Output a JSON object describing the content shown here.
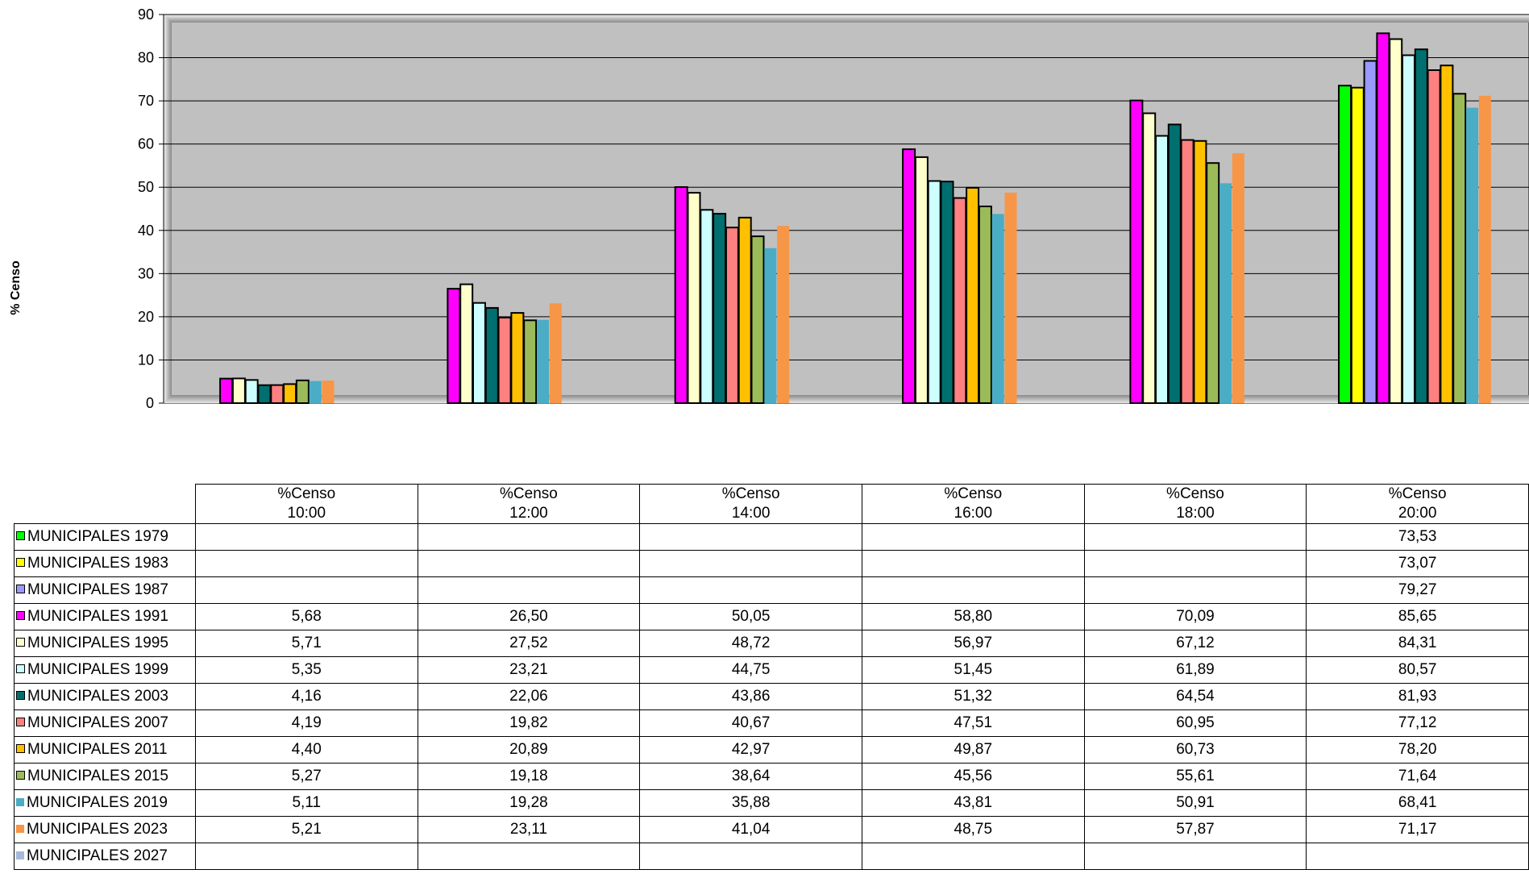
{
  "chart_data": {
    "type": "bar",
    "title": "",
    "ylabel": "% Censo",
    "ylim": [
      0,
      90
    ],
    "yticks": [
      0,
      10,
      20,
      30,
      40,
      50,
      60,
      70,
      80,
      90
    ],
    "grid": true,
    "categories": [
      {
        "line1": "%Censo",
        "line2": "10:00"
      },
      {
        "line1": "%Censo",
        "line2": "12:00"
      },
      {
        "line1": "%Censo",
        "line2": "14:00"
      },
      {
        "line1": "%Censo",
        "line2": "16:00"
      },
      {
        "line1": "%Censo",
        "line2": "18:00"
      },
      {
        "line1": "%Censo",
        "line2": "20:00"
      }
    ],
    "series": [
      {
        "name": "MUNICIPALES 1979",
        "color": "#00ff00",
        "outline": true,
        "values": [
          null,
          null,
          null,
          null,
          null,
          73.53
        ],
        "labels": [
          "",
          "",
          "",
          "",
          "",
          "73,53"
        ]
      },
      {
        "name": "MUNICIPALES 1983",
        "color": "#ffff00",
        "outline": true,
        "values": [
          null,
          null,
          null,
          null,
          null,
          73.07
        ],
        "labels": [
          "",
          "",
          "",
          "",
          "",
          "73,07"
        ]
      },
      {
        "name": "MUNICIPALES 1987",
        "color": "#9999ff",
        "outline": true,
        "values": [
          null,
          null,
          null,
          null,
          null,
          79.27
        ],
        "labels": [
          "",
          "",
          "",
          "",
          "",
          "79,27"
        ]
      },
      {
        "name": "MUNICIPALES 1991",
        "color": "#ff00ff",
        "outline": true,
        "values": [
          5.68,
          26.5,
          50.05,
          58.8,
          70.09,
          85.65
        ],
        "labels": [
          "5,68",
          "26,50",
          "50,05",
          "58,80",
          "70,09",
          "85,65"
        ]
      },
      {
        "name": "MUNICIPALES 1995",
        "color": "#ffffcc",
        "outline": true,
        "values": [
          5.71,
          27.52,
          48.72,
          56.97,
          67.12,
          84.31
        ],
        "labels": [
          "5,71",
          "27,52",
          "48,72",
          "56,97",
          "67,12",
          "84,31"
        ]
      },
      {
        "name": "MUNICIPALES 1999",
        "color": "#ccffff",
        "outline": true,
        "values": [
          5.35,
          23.21,
          44.75,
          51.45,
          61.89,
          80.57
        ],
        "labels": [
          "5,35",
          "23,21",
          "44,75",
          "51,45",
          "61,89",
          "80,57"
        ]
      },
      {
        "name": "MUNICIPALES 2003",
        "color": "#006f6f",
        "outline": true,
        "values": [
          4.16,
          22.06,
          43.86,
          51.32,
          64.54,
          81.93
        ],
        "labels": [
          "4,16",
          "22,06",
          "43,86",
          "51,32",
          "64,54",
          "81,93"
        ]
      },
      {
        "name": "MUNICIPALES 2007",
        "color": "#ff8080",
        "outline": true,
        "values": [
          4.19,
          19.82,
          40.67,
          47.51,
          60.95,
          77.12
        ],
        "labels": [
          "4,19",
          "19,82",
          "40,67",
          "47,51",
          "60,95",
          "77,12"
        ]
      },
      {
        "name": "MUNICIPALES 2011",
        "color": "#ffc000",
        "outline": true,
        "values": [
          4.4,
          20.89,
          42.97,
          49.87,
          60.73,
          78.2
        ],
        "labels": [
          "4,40",
          "20,89",
          "42,97",
          "49,87",
          "60,73",
          "78,20"
        ]
      },
      {
        "name": "MUNICIPALES 2015",
        "color": "#9bbb59",
        "outline": true,
        "values": [
          5.27,
          19.18,
          38.64,
          45.56,
          55.61,
          71.64
        ],
        "labels": [
          "5,27",
          "19,18",
          "38,64",
          "45,56",
          "55,61",
          "71,64"
        ]
      },
      {
        "name": "MUNICIPALES 2019",
        "color": "#4bacc6",
        "outline": false,
        "values": [
          5.11,
          19.28,
          35.88,
          43.81,
          50.91,
          68.41
        ],
        "labels": [
          "5,11",
          "19,28",
          "35,88",
          "43,81",
          "50,91",
          "68,41"
        ]
      },
      {
        "name": "MUNICIPALES 2023",
        "color": "#f79646",
        "outline": false,
        "values": [
          5.21,
          23.11,
          41.04,
          48.75,
          57.87,
          71.17
        ],
        "labels": [
          "5,21",
          "23,11",
          "41,04",
          "48,75",
          "57,87",
          "71,17"
        ]
      },
      {
        "name": "MUNICIPALES 2027",
        "color": "#a6b8dc",
        "outline": false,
        "values": [
          null,
          null,
          null,
          null,
          null,
          null
        ],
        "labels": [
          "",
          "",
          "",
          "",
          "",
          ""
        ]
      }
    ]
  }
}
